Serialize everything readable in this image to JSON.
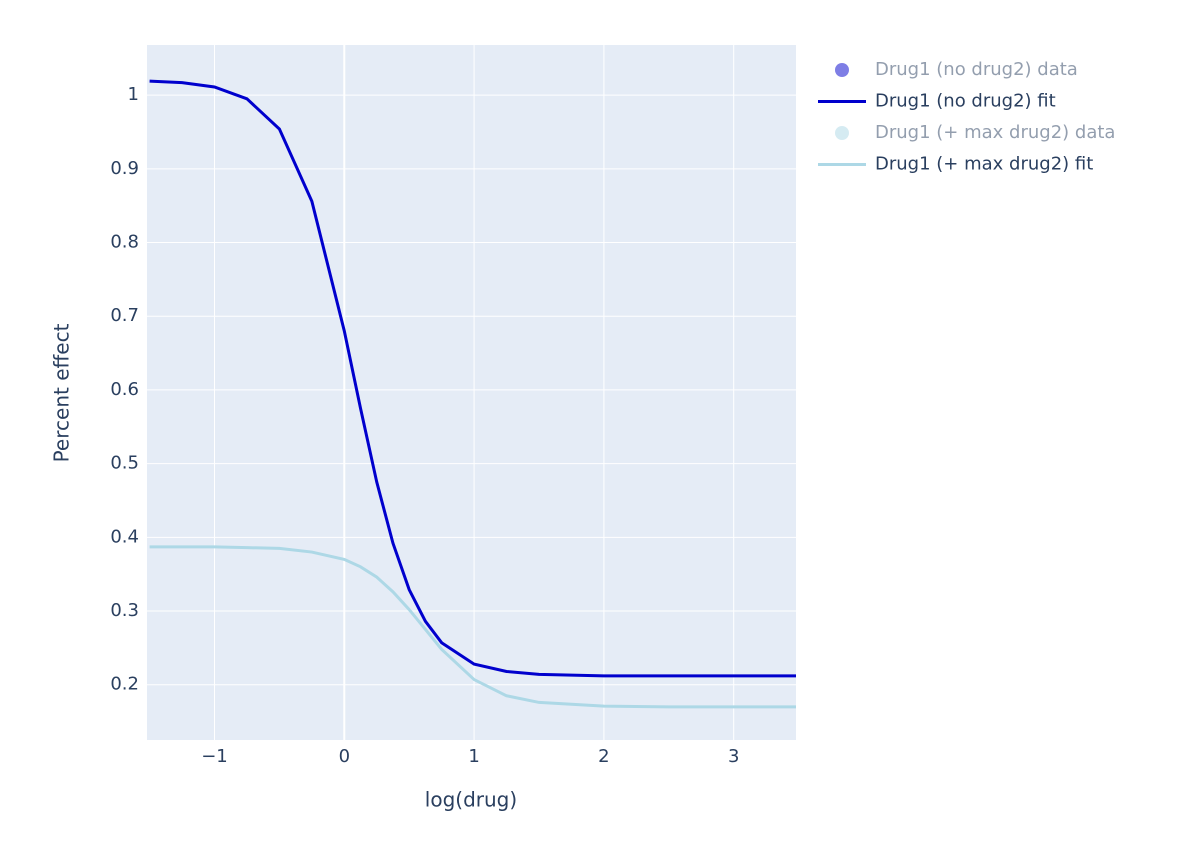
{
  "chart_data": {
    "type": "line",
    "x_label": "log(drug)",
    "y_label": "Percent effect",
    "x": [
      -1.5,
      -1.25,
      -1,
      -0.75,
      -0.5,
      -0.25,
      0,
      0.125,
      0.25,
      0.375,
      0.5,
      0.625,
      0.75,
      1,
      1.25,
      1.5,
      2,
      2.5,
      3,
      3.48
    ],
    "series": [
      {
        "name": "Drug1 (no drug2) data",
        "color": "#0000cd",
        "mode": "markers",
        "visible": "legendonly"
      },
      {
        "name": "Drug1 (no drug2) fit",
        "color": "#0000cd",
        "mode": "lines",
        "values": [
          1.019,
          1.017,
          1.011,
          0.995,
          0.954,
          0.856,
          0.68,
          0.575,
          0.475,
          0.392,
          0.329,
          0.286,
          0.257,
          0.228,
          0.218,
          0.214,
          0.212,
          0.212,
          0.212,
          0.212
        ]
      },
      {
        "name": "Drug1 (+ max drug2) data",
        "color": "#add8e6",
        "mode": "markers",
        "visible": "legendonly"
      },
      {
        "name": "Drug1 (+ max drug2) fit",
        "color": "#add8e6",
        "mode": "lines",
        "values": [
          0.387,
          0.387,
          0.387,
          0.386,
          0.385,
          0.38,
          0.37,
          0.36,
          0.346,
          0.326,
          0.302,
          0.275,
          0.248,
          0.207,
          0.185,
          0.176,
          0.171,
          0.17,
          0.17,
          0.17
        ]
      }
    ],
    "xlim": [
      -1.52,
      3.48
    ],
    "ylim": [
      0.125,
      1.068
    ],
    "xticks": [
      {
        "value": -1,
        "label": "−1"
      },
      0,
      1,
      2,
      3
    ],
    "yticks": [
      0.2,
      0.3,
      0.4,
      0.5,
      0.6,
      0.7,
      0.8,
      0.9,
      1
    ],
    "grid": true,
    "legend": "outside-right"
  }
}
